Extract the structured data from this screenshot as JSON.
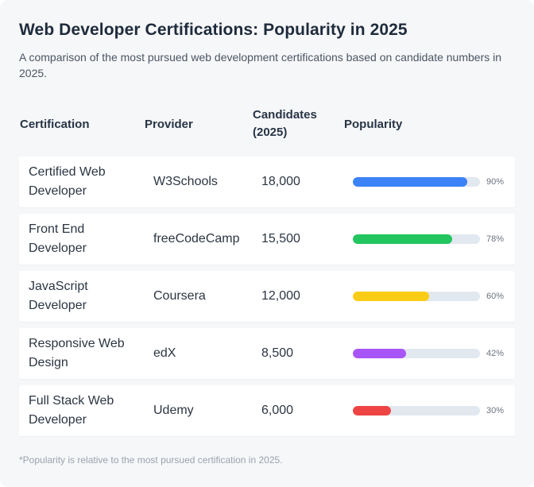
{
  "title": "Web Developer Certifications: Popularity in 2025",
  "subtitle": "A comparison of the most pursued web development certifications based on candidate numbers in 2025.",
  "columns": {
    "certification": "Certification",
    "provider": "Provider",
    "candidates_line1": "Candidates",
    "candidates_line2": "(2025)",
    "popularity": "Popularity"
  },
  "rows": [
    {
      "cert_line1": "Certified Web",
      "cert_line2": "Developer",
      "provider": "W3Schools",
      "candidates": "18,000",
      "popularity": 90,
      "popularity_label": "90%",
      "color": "#3b82f6"
    },
    {
      "cert_line1": "Front End",
      "cert_line2": "Developer",
      "provider": "freeCodeCamp",
      "candidates": "15,500",
      "popularity": 78,
      "popularity_label": "78%",
      "color": "#22c55e"
    },
    {
      "cert_line1": "JavaScript",
      "cert_line2": "Developer",
      "provider": "Coursera",
      "candidates": "12,000",
      "popularity": 60,
      "popularity_label": "60%",
      "color": "#facc15"
    },
    {
      "cert_line1": "Responsive Web",
      "cert_line2": "Design",
      "provider": "edX",
      "candidates": "8,500",
      "popularity": 42,
      "popularity_label": "42%",
      "color": "#a855f7"
    },
    {
      "cert_line1": "Full Stack Web",
      "cert_line2": "Developer",
      "provider": "Udemy",
      "candidates": "6,000",
      "popularity": 30,
      "popularity_label": "30%",
      "color": "#ef4444"
    }
  ],
  "footnote": "*Popularity is relative to the most pursued certification in 2025."
}
